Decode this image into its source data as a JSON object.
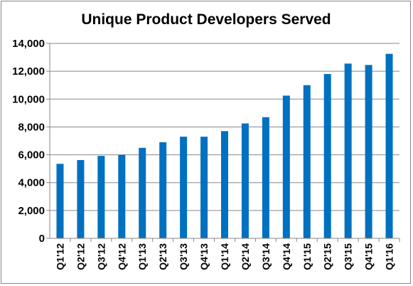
{
  "chart_data": {
    "type": "bar",
    "title": "Unique Product Developers Served",
    "xlabel": "",
    "ylabel": "",
    "categories": [
      "Q1'12",
      "Q2'12",
      "Q3'12",
      "Q4'12",
      "Q1'13",
      "Q2'13",
      "Q3'13",
      "Q4'13",
      "Q1'14",
      "Q2'14",
      "Q3'14",
      "Q4'14",
      "Q1'15",
      "Q2'15",
      "Q3'15",
      "Q4'15",
      "Q1'16"
    ],
    "values": [
      5350,
      5620,
      5920,
      6000,
      6500,
      6900,
      7300,
      7300,
      7700,
      8250,
      8700,
      10250,
      11000,
      11800,
      12550,
      12450,
      13250
    ],
    "ylim": [
      0,
      14000
    ],
    "yticks": [
      "0",
      "2,000",
      "4,000",
      "6,000",
      "8,000",
      "10,000",
      "12,000",
      "14,000"
    ],
    "grid": true,
    "legend": "none",
    "bar_color": "#0070C0",
    "grid_color": "#878787"
  }
}
